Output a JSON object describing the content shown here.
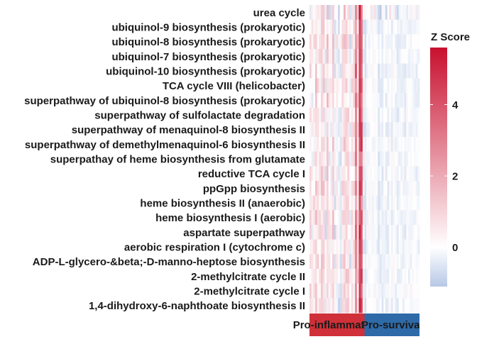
{
  "chart_data": {
    "type": "heatmap",
    "rows": [
      "urea cycle",
      "ubiquinol-9 biosynthesis (prokaryotic)",
      "ubiquinol-8 biosynthesis (prokaryotic)",
      "ubiquinol-7 biosynthesis (prokaryotic)",
      "ubiquinol-10 biosynthesis (prokaryotic)",
      "TCA cycle VIII (helicobacter)",
      "superpathway of ubiquinol-8 biosynthesis (prokaryotic)",
      "superpathway of sulfolactate degradation",
      "superpathway of menaquinol-8 biosynthesis II",
      "superpathway of demethylmenaquinol-6 biosynthesis II",
      "superpathay of heme biosynthesis from glutamate",
      "reductive TCA cycle I",
      "ppGpp biosynthesis",
      "heme biosynthesis II (anaerobic)",
      "heme biosynthesis I (aerobic)",
      "aspartate superpathway",
      "aerobic respiration I (cytochrome c)",
      "ADP-L-glycero-&beta;-D-manno-heptose biosynthesis",
      "2-methylcitrate cycle II",
      "2-methylcitrate cycle I",
      "1,4-dihydroxy-6-naphthoate biosynthesis II"
    ],
    "column_groups": [
      {
        "label": "Pro-inflammatory",
        "count": 29,
        "color": "#d03039"
      },
      {
        "label": "Pro-survival",
        "count": 29,
        "color": "#2e6aa8"
      }
    ],
    "legend": {
      "title": "Z Score",
      "ticks": [
        0,
        2,
        4
      ],
      "range": [
        -1.1,
        5.6
      ],
      "colors": [
        "#b7c8e6",
        "#ffffff",
        "#c8102e"
      ]
    },
    "seed": 7
  }
}
